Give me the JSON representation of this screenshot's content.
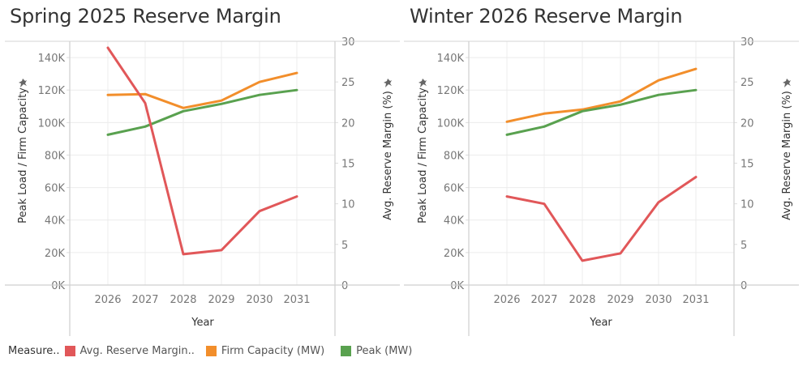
{
  "chart_data": [
    {
      "type": "line",
      "title": "Spring 2025 Reserve Margin",
      "xlabel": "Year",
      "ylabel": "Peak Load / Firm Capacity",
      "y2label": "Avg. Reserve Margin (%)",
      "categories": [
        "2026",
        "2027",
        "2028",
        "2029",
        "2030",
        "2031"
      ],
      "ylim": [
        0,
        150000
      ],
      "y_ticks": [
        0,
        20000,
        40000,
        60000,
        80000,
        100000,
        120000,
        140000
      ],
      "y_tick_labels": [
        "0K",
        "20K",
        "40K",
        "60K",
        "80K",
        "100K",
        "120K",
        "140K"
      ],
      "y2lim": [
        0,
        30
      ],
      "y2_ticks": [
        0,
        5,
        10,
        15,
        20,
        25,
        30
      ],
      "y2_tick_labels": [
        "0",
        "5",
        "10",
        "15",
        "20",
        "25",
        "30"
      ],
      "grid": true,
      "series": [
        {
          "name": "Avg. Reserve Margin..",
          "axis": "right",
          "color": "#e15759",
          "values": [
            29.2,
            22.4,
            3.8,
            4.3,
            9.1,
            10.9
          ]
        },
        {
          "name": "Firm Capacity (MW)",
          "axis": "left",
          "color": "#f28e2b",
          "values": [
            117000,
            117500,
            109000,
            113500,
            125000,
            130500
          ]
        },
        {
          "name": "Peak (MW)",
          "axis": "left",
          "color": "#59a14f",
          "values": [
            92500,
            97500,
            107000,
            111500,
            117000,
            120000
          ]
        }
      ]
    },
    {
      "type": "line",
      "title": "Winter 2026 Reserve Margin",
      "xlabel": "Year",
      "ylabel": "Peak Load / Firm Capacity",
      "y2label": "Avg. Reserve Margin (%)",
      "categories": [
        "2026",
        "2027",
        "2028",
        "2029",
        "2030",
        "2031"
      ],
      "ylim": [
        0,
        150000
      ],
      "y_ticks": [
        0,
        20000,
        40000,
        60000,
        80000,
        100000,
        120000,
        140000
      ],
      "y_tick_labels": [
        "0K",
        "20K",
        "40K",
        "60K",
        "80K",
        "100K",
        "120K",
        "140K"
      ],
      "y2lim": [
        0,
        30
      ],
      "y2_ticks": [
        0,
        5,
        10,
        15,
        20,
        25,
        30
      ],
      "y2_tick_labels": [
        "0",
        "5",
        "10",
        "15",
        "20",
        "25",
        "30"
      ],
      "grid": true,
      "series": [
        {
          "name": "Avg. Reserve Margin..",
          "axis": "right",
          "color": "#e15759",
          "values": [
            10.9,
            10.0,
            3.0,
            3.9,
            10.2,
            13.3
          ]
        },
        {
          "name": "Firm Capacity (MW)",
          "axis": "left",
          "color": "#f28e2b",
          "values": [
            100500,
            105500,
            108000,
            113000,
            126000,
            133000
          ]
        },
        {
          "name": "Peak (MW)",
          "axis": "left",
          "color": "#59a14f",
          "values": [
            92500,
            97500,
            107000,
            111000,
            117000,
            120000
          ]
        }
      ]
    }
  ],
  "legend": {
    "header": "Measure..",
    "position": "bottom-left",
    "items": [
      {
        "label": "Avg. Reserve Margin..",
        "color": "#e15759"
      },
      {
        "label": "Firm Capacity (MW)",
        "color": "#f28e2b"
      },
      {
        "label": "Peak (MW)",
        "color": "#59a14f"
      }
    ]
  },
  "icons": {
    "pin": "pin-icon"
  }
}
